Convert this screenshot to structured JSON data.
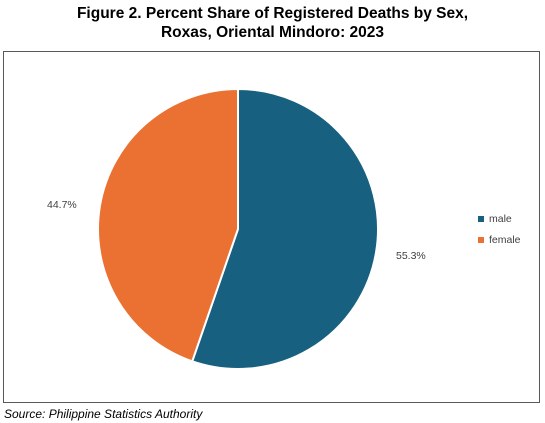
{
  "chart_data": {
    "type": "pie",
    "title_line1": "Figure 2. Percent Share of Registered Deaths by Sex,",
    "title_line2": "Roxas, Oriental Mindoro: 2023",
    "categories": [
      "male",
      "female"
    ],
    "values": [
      55.3,
      44.7
    ],
    "labels": [
      "55.3%",
      "44.7%"
    ],
    "colors": [
      "#18607f",
      "#eb7132"
    ],
    "legend_position": "right",
    "start_angle": "12 o'clock, clockwise"
  },
  "source": "Source: Philippine Statistics Authority"
}
